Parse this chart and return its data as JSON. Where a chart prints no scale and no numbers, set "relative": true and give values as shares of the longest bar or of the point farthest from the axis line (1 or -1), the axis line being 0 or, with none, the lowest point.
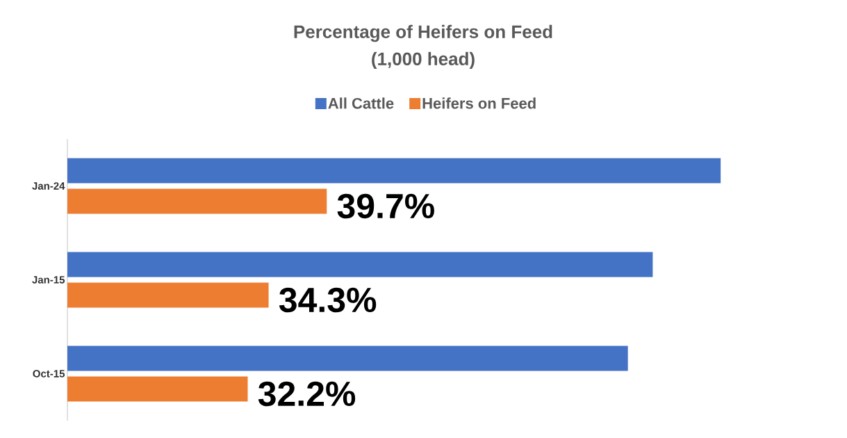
{
  "chart_data": {
    "type": "bar",
    "orientation": "horizontal",
    "relative": true,
    "title": "Percentage of Heifers on Feed",
    "subtitle": "(1,000 head)",
    "categories": [
      "Jan-24",
      "Jan-15",
      "Oct-15"
    ],
    "series": [
      {
        "name": "All Cattle",
        "color": "#4472c4",
        "values": [
          1.0,
          0.896,
          0.858
        ]
      },
      {
        "name": "Heifers on Feed",
        "color": "#ed7d31",
        "values": [
          0.397,
          0.308,
          0.276
        ]
      }
    ],
    "annotations": [
      {
        "text": "39.7%",
        "x": 0.397,
        "y": "Jan-24"
      },
      {
        "text": "34.3%",
        "x": 0.308,
        "y": "Jan-15"
      },
      {
        "text": "32.2%",
        "x": 0.276,
        "y": "Oct-15"
      }
    ],
    "legend": "top",
    "grid": false
  }
}
